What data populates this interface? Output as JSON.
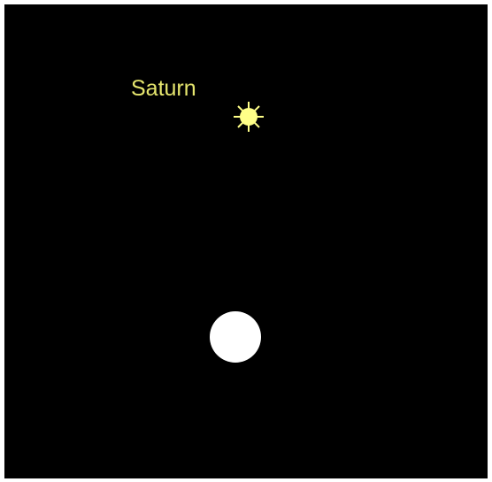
{
  "object": {
    "label": "Saturn"
  }
}
